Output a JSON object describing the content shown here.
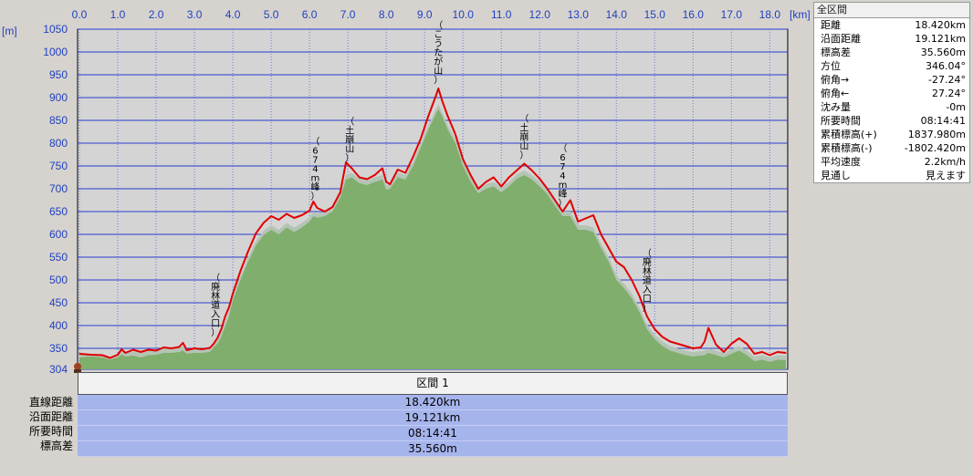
{
  "chart_data": {
    "type": "area",
    "x_unit": "[km]",
    "y_unit": "[m]",
    "xlim": [
      0,
      18.42
    ],
    "ylim": [
      304,
      1050
    ],
    "x_ticks": [
      "0.0",
      "1.0",
      "2.0",
      "3.0",
      "4.0",
      "5.0",
      "6.0",
      "7.0",
      "8.0",
      "9.0",
      "10.0",
      "11.0",
      "12.0",
      "13.0",
      "14.0",
      "15.0",
      "16.0",
      "17.0",
      "18.0"
    ],
    "y_ticks": [
      304,
      350,
      400,
      450,
      500,
      550,
      600,
      650,
      700,
      750,
      800,
      850,
      900,
      950,
      1000,
      1050
    ],
    "grid": true,
    "series": [
      {
        "color": "#e00000",
        "x": [
          0.0,
          0.3,
          0.6,
          0.8,
          1.0,
          1.1,
          1.2,
          1.4,
          1.6,
          1.8,
          2.0,
          2.2,
          2.4,
          2.6,
          2.7,
          2.8,
          3.0,
          3.2,
          3.4,
          3.5,
          3.6,
          3.7,
          3.8,
          3.9,
          4.0,
          4.2,
          4.4,
          4.6,
          4.8,
          5.0,
          5.2,
          5.4,
          5.6,
          5.8,
          6.0,
          6.1,
          6.2,
          6.4,
          6.6,
          6.8,
          6.95,
          7.1,
          7.3,
          7.5,
          7.7,
          7.9,
          8.0,
          8.1,
          8.3,
          8.5,
          8.7,
          8.9,
          9.1,
          9.3,
          9.36,
          9.45,
          9.6,
          9.8,
          10.0,
          10.2,
          10.4,
          10.6,
          10.8,
          11.0,
          11.2,
          11.4,
          11.6,
          11.8,
          12.0,
          12.2,
          12.4,
          12.6,
          12.8,
          13.0,
          13.2,
          13.4,
          13.6,
          13.8,
          14.0,
          14.2,
          14.4,
          14.6,
          14.8,
          15.0,
          15.2,
          15.4,
          15.6,
          15.8,
          16.0,
          16.2,
          16.3,
          16.4,
          16.6,
          16.8,
          17.0,
          17.2,
          17.4,
          17.6,
          17.8,
          18.0,
          18.2,
          18.42
        ],
        "y": [
          338,
          336,
          335,
          329,
          336,
          348,
          340,
          347,
          342,
          347,
          345,
          352,
          350,
          353,
          362,
          346,
          350,
          348,
          351,
          360,
          373,
          392,
          420,
          440,
          470,
          520,
          563,
          602,
          625,
          640,
          632,
          645,
          636,
          642,
          652,
          672,
          658,
          650,
          660,
          692,
          758,
          745,
          725,
          721,
          730,
          745,
          715,
          710,
          742,
          735,
          770,
          810,
          860,
          905,
          920,
          895,
          860,
          820,
          765,
          730,
          700,
          715,
          725,
          705,
          725,
          740,
          755,
          740,
          722,
          700,
          675,
          650,
          675,
          628,
          635,
          642,
          600,
          570,
          540,
          528,
          500,
          465,
          420,
          392,
          375,
          365,
          360,
          355,
          350,
          352,
          365,
          395,
          358,
          342,
          360,
          372,
          360,
          338,
          342,
          335,
          342,
          340
        ],
        "fill_x": [
          0.0,
          0.3,
          0.6,
          0.8,
          1.0,
          1.1,
          1.2,
          1.4,
          1.6,
          1.8,
          2.0,
          2.2,
          2.4,
          2.6,
          2.7,
          2.8,
          3.0,
          3.2,
          3.4,
          3.5,
          3.6,
          3.7,
          3.8,
          3.9,
          4.0,
          4.2,
          4.4,
          4.6,
          4.8,
          5.0,
          5.2,
          5.4,
          5.6,
          5.8,
          6.0,
          6.1,
          6.2,
          6.4,
          6.6,
          6.8,
          6.95,
          7.1,
          7.3,
          7.5,
          7.7,
          7.9,
          8.0,
          8.1,
          8.3,
          8.5,
          8.7,
          8.9,
          9.1,
          9.3,
          9.36,
          9.45,
          9.6,
          9.8,
          10.0,
          10.2,
          10.4,
          10.6,
          10.8,
          11.0,
          11.2,
          11.4,
          11.6,
          11.8,
          12.0,
          12.2,
          12.4,
          12.6,
          12.8,
          13.0,
          13.2,
          13.4,
          13.6,
          13.8,
          14.0,
          14.2,
          14.4,
          14.6,
          14.8,
          15.0,
          15.2,
          15.4,
          15.6,
          15.8,
          16.0,
          16.2,
          16.3,
          16.4,
          16.6,
          16.8,
          17.0,
          17.2,
          17.4,
          17.6,
          17.8,
          18.0,
          18.2,
          18.42
        ],
        "fill_y": [
          330,
          332,
          330,
          325,
          330,
          336,
          332,
          334,
          330,
          335,
          336,
          340,
          340,
          342,
          345,
          338,
          340,
          340,
          342,
          352,
          360,
          375,
          398,
          420,
          455,
          500,
          540,
          575,
          598,
          610,
          600,
          615,
          605,
          615,
          628,
          640,
          636,
          640,
          650,
          680,
          720,
          725,
          712,
          708,
          715,
          720,
          698,
          700,
          725,
          720,
          750,
          790,
          830,
          865,
          875,
          860,
          830,
          800,
          750,
          715,
          690,
          700,
          705,
          692,
          705,
          722,
          730,
          720,
          705,
          688,
          662,
          640,
          640,
          610,
          610,
          605,
          570,
          540,
          500,
          482,
          460,
          430,
          392,
          370,
          355,
          345,
          340,
          335,
          332,
          334,
          335,
          340,
          335,
          330,
          338,
          345,
          335,
          322,
          325,
          320,
          325,
          324
        ],
        "fill_color": "#80ae6c",
        "shadow_color": "#b4c4b4"
      }
    ],
    "annotations": [
      {
        "text": "（廃林道入口）",
        "x": 3.55
      },
      {
        "text": "（674m峰）",
        "x": 6.15
      },
      {
        "text": "（土崩山）",
        "x": 7.05
      },
      {
        "text": "（こうたが山）",
        "x": 9.36
      },
      {
        "text": "（土崩山）",
        "x": 11.6
      },
      {
        "text": "（674m峰）",
        "x": 12.6
      },
      {
        "text": "（廃林道入口）",
        "x": 14.8
      }
    ]
  },
  "info_panel": {
    "title": "全区間",
    "rows": [
      {
        "label": "距離",
        "value": "18.420km"
      },
      {
        "label": "沿面距離",
        "value": "19.121km"
      },
      {
        "label": "標高差",
        "value": "35.560m"
      },
      {
        "label": "方位",
        "value": "346.04°"
      },
      {
        "label": "俯角→",
        "value": "-27.24°"
      },
      {
        "label": "俯角←",
        "value": "27.24°"
      },
      {
        "label": "沈み量",
        "value": "-0m"
      },
      {
        "label": "所要時間",
        "value": "08:14:41"
      },
      {
        "label": "累積標高(+)",
        "value": "1837.980m"
      },
      {
        "label": "累積標高(-)",
        "value": "-1802.420m"
      },
      {
        "label": "平均速度",
        "value": "2.2km/h"
      },
      {
        "label": "見通し",
        "value": "見えます"
      }
    ]
  },
  "section_table": {
    "header": "区間 1",
    "labels": [
      "直線距離",
      "沿面距離",
      "所要時間",
      "標高差"
    ],
    "values": [
      "18.420km",
      "19.121km",
      "08:14:41",
      "35.560m"
    ]
  },
  "colors": {
    "plot_bg": "#d4d4d4",
    "grid": "#2a3cd0",
    "axis_text": "#2040c0",
    "profile_line": "#e00000",
    "terrain_fill": "#80ae6c"
  }
}
